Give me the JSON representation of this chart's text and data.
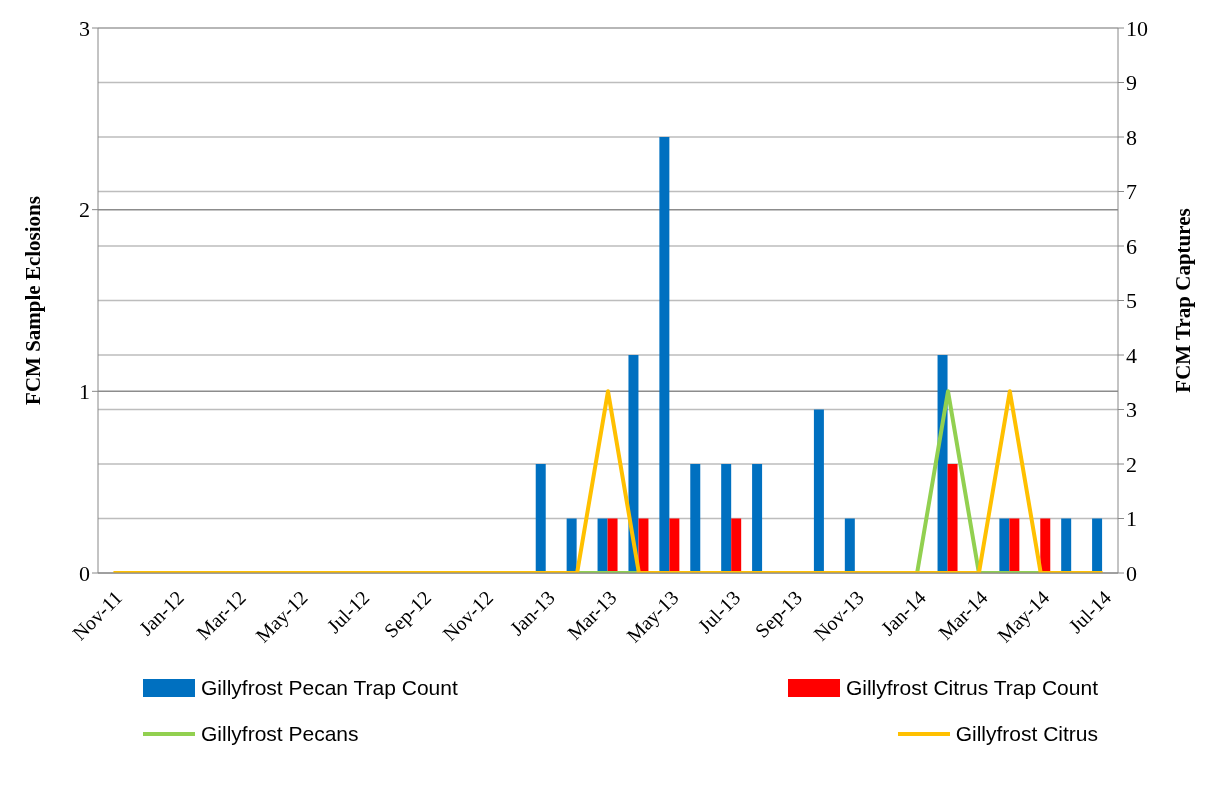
{
  "chart_data": {
    "type": "bar",
    "categories": [
      "Nov-11",
      null,
      "Jan-12",
      null,
      "Mar-12",
      null,
      "May-12",
      null,
      "Jul-12",
      null,
      "Sep-12",
      null,
      "Nov-12",
      null,
      "Jan-13",
      null,
      "Mar-13",
      null,
      "May-13",
      null,
      "Jul-13",
      null,
      "Sep-13",
      null,
      "Nov-13",
      null,
      "Jan-14",
      null,
      "Mar-14",
      null,
      "May-14",
      null,
      "Jul-14"
    ],
    "series": [
      {
        "name": "Gillyfrost Pecan Trap Count",
        "axis": "y2",
        "color": "#0070c0",
        "values": [
          0,
          0,
          0,
          0,
          0,
          0,
          0,
          0,
          0,
          0,
          0,
          0,
          0,
          0,
          2,
          1,
          1,
          4,
          8,
          2,
          2,
          2,
          0,
          3,
          1,
          0,
          0,
          4,
          0,
          1,
          0,
          1,
          1
        ]
      },
      {
        "name": "Gillyfrost Citrus Trap Count",
        "axis": "y2",
        "color": "#ff0000",
        "values": [
          0,
          0,
          0,
          0,
          0,
          0,
          0,
          0,
          0,
          0,
          0,
          0,
          0,
          0,
          0,
          0,
          1,
          1,
          1,
          0,
          1,
          0,
          0,
          0,
          0,
          0,
          0,
          2,
          0,
          1,
          1,
          0,
          0
        ]
      },
      {
        "name": "Gillyfrost Pecans",
        "type": "line",
        "axis": "y",
        "color": "#92d050",
        "values": [
          null,
          null,
          null,
          null,
          null,
          null,
          null,
          null,
          null,
          null,
          null,
          null,
          null,
          null,
          null,
          0,
          0,
          0,
          null,
          null,
          null,
          null,
          null,
          null,
          null,
          null,
          0,
          1,
          0,
          0,
          0,
          null,
          null
        ]
      },
      {
        "name": "Gillyfrost Citrus",
        "type": "line",
        "axis": "y",
        "color": "#ffc000",
        "values": [
          0,
          0,
          0,
          0,
          0,
          0,
          0,
          0,
          0,
          0,
          0,
          0,
          0,
          0,
          0,
          0,
          1,
          0,
          0,
          0,
          0,
          0,
          0,
          0,
          0,
          0,
          0,
          0,
          0,
          1,
          0,
          0,
          0
        ]
      }
    ],
    "ylabel": "FCM Sample Eclosions",
    "y2label": "FCM Trap Captures",
    "ylim": [
      0,
      3
    ],
    "yticks": [
      0,
      1,
      2,
      3
    ],
    "y2lim": [
      0,
      10
    ],
    "y2ticks": [
      0,
      1,
      2,
      3,
      4,
      5,
      6,
      7,
      8,
      9,
      10
    ],
    "grid": true,
    "legend": "bottom",
    "marker": "none",
    "line_style": "solid"
  }
}
